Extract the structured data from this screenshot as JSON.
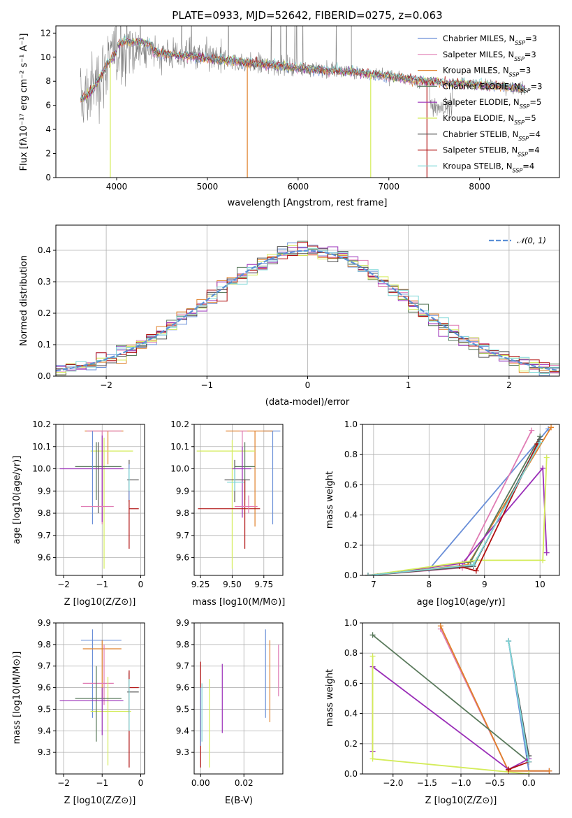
{
  "figure_title": "PLATE=0933, MJD=52642, FIBERID=0275, z=0.063",
  "colors": [
    "#6a8fd8",
    "#e07cb4",
    "#e0802a",
    "#5a7a5c",
    "#9a2fb8",
    "#d4ec5a",
    "#555555",
    "#b01010",
    "#7ed8d8"
  ],
  "chart_data": [
    {
      "id": "spectrum",
      "type": "line",
      "title": "PLATE=0933, MJD=52642, FIBERID=0275, z=0.063",
      "xlabel": "wavelength [Angstrom, rest frame]",
      "ylabel": "Flux [fλ10⁻¹⁷ erg cm⁻² s⁻¹ A⁻¹]",
      "xlim": [
        3330,
        8880
      ],
      "ylim": [
        0,
        12.6
      ],
      "xticks": [
        4000,
        5000,
        6000,
        7000,
        8000
      ],
      "yticks": [
        0,
        2,
        4,
        6,
        8,
        10,
        12
      ],
      "legend_position": "upper-right",
      "data_color": "#808080",
      "legend": [
        "Chabrier MILES, NSSP=3",
        "Salpeter MILES, NSSP=3",
        "Kroupa MILES, NSSP=3",
        "Chabrier ELODIE, NSSP=3",
        "Salpeter ELODIE, NSSP=5",
        "Kroupa ELODIE, NSSP=5",
        "Chabrier STELIB, NSSP=4",
        "Salpeter STELIB, NSSP=4",
        "Kroupa STELIB, NSSP=4"
      ],
      "legend_parts": [
        {
          "a": "Chabrier MILES, N",
          "b": "SSP",
          "c": "=3"
        },
        {
          "a": "Salpeter MILES, N",
          "b": "SSP",
          "c": "=3"
        },
        {
          "a": "Kroupa MILES, N",
          "b": "SSP",
          "c": "=3"
        },
        {
          "a": "Chabrier ELODIE, N",
          "b": "SSP",
          "c": "=3"
        },
        {
          "a": "Salpeter ELODIE, N",
          "b": "SSP",
          "c": "=5"
        },
        {
          "a": "Kroupa ELODIE, N",
          "b": "SSP",
          "c": "=5"
        },
        {
          "a": "Chabrier STELIB, N",
          "b": "SSP",
          "c": "=4"
        },
        {
          "a": "Salpeter STELIB, N",
          "b": "SSP",
          "c": "=4"
        },
        {
          "a": "Kroupa STELIB, N",
          "b": "SSP",
          "c": "=4"
        }
      ],
      "continuum": {
        "x": [
          3600,
          3700,
          3800,
          3900,
          4000,
          4100,
          4300,
          4500,
          4800,
          5000,
          5200,
          5500,
          5800,
          6000,
          6300,
          6600,
          6800,
          7000,
          7200,
          7400,
          7600,
          7800,
          8000,
          8200,
          8500
        ],
        "y": [
          6.4,
          7.0,
          8.1,
          9.5,
          10.4,
          10.7,
          10.6,
          10.3,
          10.1,
          9.9,
          9.7,
          9.5,
          9.3,
          9.1,
          8.9,
          8.8,
          8.6,
          8.4,
          8.2,
          8.0,
          7.9,
          7.8,
          7.7,
          7.6,
          7.4
        ]
      },
      "model_drops": [
        {
          "x": 3930,
          "y": 0
        },
        {
          "x": 5440,
          "y": 0
        },
        {
          "x": 6800,
          "y": 0
        },
        {
          "x": 7420,
          "y": 0
        }
      ]
    },
    {
      "id": "residual-hist",
      "type": "line",
      "xlabel": "(data-model)/error",
      "ylabel": "Normed distribution",
      "xlim": [
        -2.5,
        2.5
      ],
      "ylim": [
        0,
        0.48
      ],
      "xticks": [
        -2,
        -1,
        0,
        1,
        2
      ],
      "yticks": [
        0.0,
        0.1,
        0.2,
        0.3,
        0.4
      ],
      "legend": [
        "𝒩(0, 1)"
      ],
      "legend_position": "upper-right",
      "gaussian_color": "#5b8fd6",
      "bin_width": 0.1
    },
    {
      "id": "age-vs-Z",
      "type": "scatter",
      "xlabel": "Z [log10(Z/Z⊙)]",
      "ylabel": "age  [log10(age/yr)]",
      "xlim": [
        -2.2,
        0.1
      ],
      "ylim": [
        9.52,
        10.2
      ],
      "xticks": [
        -2,
        -1,
        0
      ],
      "yticks": [
        9.6,
        9.7,
        9.8,
        9.9,
        10.0,
        10.1,
        10.2
      ],
      "points": [
        {
          "x": -0.85,
          "y": 10.17,
          "xe": [
            -1.45,
            -0.45
          ],
          "ye": [
            10.02,
            10.17
          ],
          "c": 2
        },
        {
          "x": -1.0,
          "y": 10.17,
          "xe": [
            -1.4,
            -0.5
          ],
          "ye": [
            9.75,
            10.17
          ],
          "c": 1
        },
        {
          "x": -0.95,
          "y": 10.08,
          "xe": [
            -1.3,
            -0.2
          ],
          "ye": [
            9.55,
            10.14
          ],
          "c": 5
        },
        {
          "x": -1.15,
          "y": 10.01,
          "xe": [
            -1.7,
            -0.5
          ],
          "ye": [
            9.86,
            10.12
          ],
          "c": 3
        },
        {
          "x": -1.0,
          "y": 10.0,
          "xe": [
            -2.1,
            -0.45
          ],
          "ye": [
            9.76,
            10.15
          ],
          "c": 4
        },
        {
          "x": -1.25,
          "y": 10.0,
          "xe": [
            -1.25,
            -1.25
          ],
          "ye": [
            9.75,
            10.17
          ],
          "c": 0
        },
        {
          "x": -1.1,
          "y": 10.03,
          "xe": [
            -1.1,
            -1.1
          ],
          "ye": [
            9.8,
            10.12
          ],
          "c": 6
        },
        {
          "x": -1.15,
          "y": 9.83,
          "xe": [
            -1.55,
            -0.7
          ],
          "ye": [
            9.83,
            9.83
          ],
          "c": 1
        },
        {
          "x": -0.3,
          "y": 9.95,
          "xe": [
            -0.35,
            -0.05
          ],
          "ye": [
            9.85,
            10.04
          ],
          "c": 6
        },
        {
          "x": -0.3,
          "y": 9.82,
          "xe": [
            -0.3,
            -0.05
          ],
          "ye": [
            9.64,
            9.95
          ],
          "c": 7
        },
        {
          "x": -0.3,
          "y": 9.96,
          "xe": [
            -0.3,
            -0.3
          ],
          "ye": [
            9.86,
            10.02
          ],
          "c": 0
        },
        {
          "x": -0.3,
          "y": 9.95,
          "xe": [
            -0.3,
            -0.3
          ],
          "ye": [
            9.9,
            10.0
          ],
          "c": 8
        }
      ]
    },
    {
      "id": "age-vs-mass",
      "type": "scatter",
      "xlabel": "mass [log10(M/M⊙)]",
      "ylabel": "",
      "xlim": [
        9.2,
        9.9
      ],
      "ylim": [
        9.52,
        10.2
      ],
      "xticks": [
        9.25,
        9.5,
        9.75
      ],
      "yticks": [
        9.6,
        9.7,
        9.8,
        9.9,
        10.0,
        10.1,
        10.2
      ],
      "points": [
        {
          "x": 9.82,
          "y": 10.17,
          "xe": [
            9.75,
            9.88
          ],
          "ye": [
            9.75,
            10.17
          ],
          "c": 0
        },
        {
          "x": 9.68,
          "y": 10.17,
          "xe": [
            9.45,
            9.82
          ],
          "ye": [
            9.74,
            10.17
          ],
          "c": 2
        },
        {
          "x": 9.58,
          "y": 10.17,
          "xe": [
            9.56,
            9.62
          ],
          "ye": [
            9.8,
            10.17
          ],
          "c": 1
        },
        {
          "x": 9.5,
          "y": 10.08,
          "xe": [
            9.22,
            9.68
          ],
          "ye": [
            9.55,
            10.13
          ],
          "c": 5
        },
        {
          "x": 9.6,
          "y": 10.01,
          "xe": [
            9.52,
            9.68
          ],
          "ye": [
            9.86,
            10.12
          ],
          "c": 3
        },
        {
          "x": 9.58,
          "y": 10.0,
          "xe": [
            9.5,
            9.65
          ],
          "ye": [
            9.78,
            10.1
          ],
          "c": 4
        },
        {
          "x": 9.52,
          "y": 9.95,
          "xe": [
            9.44,
            9.64
          ],
          "ye": [
            9.85,
            10.04
          ],
          "c": 6
        },
        {
          "x": 9.52,
          "y": 9.94,
          "xe": [
            9.46,
            9.6
          ],
          "ye": [
            9.9,
            10.0
          ],
          "c": 8
        },
        {
          "x": 9.6,
          "y": 9.82,
          "xe": [
            9.23,
            9.72
          ],
          "ye": [
            9.64,
            9.95
          ],
          "c": 7
        },
        {
          "x": 9.63,
          "y": 9.83,
          "xe": [
            9.52,
            9.7
          ],
          "ye": [
            9.8,
            9.88
          ],
          "c": 1
        }
      ]
    },
    {
      "id": "mass-weight-vs-age",
      "type": "line",
      "xlabel": "age  [log10(age/yr)]",
      "ylabel": "mass weight",
      "xlim": [
        6.8,
        10.35
      ],
      "ylim": [
        0,
        1.0
      ],
      "xticks": [
        7,
        8,
        9,
        10
      ],
      "yticks": [
        0.0,
        0.2,
        0.4,
        0.6,
        0.8,
        1.0
      ],
      "series": [
        {
          "c": 0,
          "x": [
            6.9,
            8.0,
            10.15
          ],
          "y": [
            0.0,
            0.04,
            0.97
          ]
        },
        {
          "c": 1,
          "x": [
            6.9,
            8.6,
            9.85
          ],
          "y": [
            0.0,
            0.05,
            0.96
          ]
        },
        {
          "c": 2,
          "x": [
            6.9,
            8.7,
            10.2
          ],
          "y": [
            0.0,
            0.07,
            0.98
          ]
        },
        {
          "c": 3,
          "x": [
            6.9,
            8.75,
            10.0
          ],
          "y": [
            0.0,
            0.09,
            0.92
          ]
        },
        {
          "c": 4,
          "x": [
            6.9,
            8.6,
            10.05,
            10.12
          ],
          "y": [
            0.0,
            0.08,
            0.71,
            0.15
          ]
        },
        {
          "c": 5,
          "x": [
            6.9,
            8.85,
            10.05,
            10.12
          ],
          "y": [
            0.0,
            0.1,
            0.1,
            0.78
          ]
        },
        {
          "c": 6,
          "x": [
            6.9,
            8.8,
            10.0
          ],
          "y": [
            0.0,
            0.06,
            0.9
          ]
        },
        {
          "c": 7,
          "x": [
            6.9,
            8.55,
            8.85,
            9.95
          ],
          "y": [
            0.0,
            0.06,
            0.03,
            0.87
          ]
        },
        {
          "c": 8,
          "x": [
            6.9,
            8.8,
            10.0
          ],
          "y": [
            0.0,
            0.07,
            0.88
          ]
        }
      ]
    },
    {
      "id": "mass-vs-Z",
      "type": "scatter",
      "xlabel": "Z [log10(Z/Z⊙)]",
      "ylabel": "mass [log10(M/M⊙)]",
      "xlim": [
        -2.2,
        0.1
      ],
      "ylim": [
        9.2,
        9.9
      ],
      "xticks": [
        -2,
        -1,
        0
      ],
      "yticks": [
        9.3,
        9.4,
        9.5,
        9.6,
        9.7,
        9.8,
        9.9
      ],
      "points": [
        {
          "x": -1.25,
          "y": 9.82,
          "xe": [
            -1.55,
            -0.5
          ],
          "ye": [
            9.46,
            9.87
          ],
          "c": 0
        },
        {
          "x": -1.0,
          "y": 9.78,
          "xe": [
            -1.5,
            -0.5
          ],
          "ye": [
            9.55,
            9.82
          ],
          "c": 2
        },
        {
          "x": -0.95,
          "y": 9.62,
          "xe": [
            -1.5,
            -0.7
          ],
          "ye": [
            9.52,
            9.8
          ],
          "c": 1
        },
        {
          "x": -0.85,
          "y": 9.49,
          "xe": [
            -1.3,
            -0.25
          ],
          "ye": [
            9.24,
            9.65
          ],
          "c": 5
        },
        {
          "x": -1.15,
          "y": 9.55,
          "xe": [
            -1.7,
            -0.5
          ],
          "ye": [
            9.35,
            9.7
          ],
          "c": 3
        },
        {
          "x": -1.0,
          "y": 9.54,
          "xe": [
            -2.1,
            -0.45
          ],
          "ye": [
            9.38,
            9.6
          ],
          "c": 4
        },
        {
          "x": -0.3,
          "y": 9.58,
          "xe": [
            -0.35,
            -0.05
          ],
          "ye": [
            9.48,
            9.67
          ],
          "c": 6
        },
        {
          "x": -0.3,
          "y": 9.6,
          "xe": [
            -0.3,
            -0.05
          ],
          "ye": [
            9.23,
            9.68
          ],
          "c": 7
        },
        {
          "x": -0.3,
          "y": 9.56,
          "xe": [
            -0.3,
            -0.3
          ],
          "ye": [
            9.4,
            9.64
          ],
          "c": 8
        }
      ]
    },
    {
      "id": "mass-vs-EBV",
      "type": "scatter",
      "xlabel": "E(B-V)",
      "ylabel": "",
      "xlim": [
        -0.003,
        0.038
      ],
      "ylim": [
        9.2,
        9.9
      ],
      "xticks": [
        0.0,
        0.02
      ],
      "yticks": [
        9.3,
        9.4,
        9.5,
        9.6,
        9.7,
        9.8,
        9.9
      ],
      "segments": [
        {
          "x": 0.0,
          "y": [
            9.23,
            9.72
          ],
          "c": 7
        },
        {
          "x": 0.0,
          "y": [
            9.33,
            9.6
          ],
          "c": 0
        },
        {
          "x": 0.0006,
          "y": [
            9.35,
            9.62
          ],
          "c": 8
        },
        {
          "x": 0.004,
          "y": [
            9.23,
            9.64
          ],
          "c": 5
        },
        {
          "x": 0.01,
          "y": [
            9.39,
            9.71
          ],
          "c": 4
        },
        {
          "x": 0.03,
          "y": [
            9.46,
            9.87
          ],
          "c": 0
        },
        {
          "x": 0.032,
          "y": [
            9.44,
            9.82
          ],
          "c": 2
        },
        {
          "x": 0.036,
          "y": [
            9.56,
            9.8
          ],
          "c": 1
        }
      ]
    },
    {
      "id": "mass-weight-vs-Z",
      "type": "line",
      "xlabel": "Z [log10(Z/Z⊙)]",
      "ylabel": "mass weight",
      "xlim": [
        -2.45,
        0.45
      ],
      "ylim": [
        0,
        1.0
      ],
      "xticks": [
        -2.0,
        -1.5,
        -1.0,
        -0.5,
        0.0
      ],
      "yticks": [
        0.0,
        0.2,
        0.4,
        0.6,
        0.8,
        1.0
      ],
      "series": [
        {
          "c": 0,
          "x": [
            -0.3,
            0.0,
            0.3
          ],
          "y": [
            0.88,
            0.02,
            0.02
          ]
        },
        {
          "c": 1,
          "x": [
            -1.3,
            -0.3,
            0.3
          ],
          "y": [
            0.96,
            0.02,
            0.02
          ]
        },
        {
          "c": 2,
          "x": [
            -1.3,
            -0.3,
            0.3
          ],
          "y": [
            0.98,
            0.02,
            0.02
          ]
        },
        {
          "c": 3,
          "x": [
            -2.3,
            0.0
          ],
          "y": [
            0.92,
            0.08
          ]
        },
        {
          "c": 4,
          "x": [
            -2.3,
            -2.3,
            -0.3,
            0.0
          ],
          "y": [
            0.15,
            0.71,
            0.03,
            0.1
          ]
        },
        {
          "c": 5,
          "x": [
            -2.3,
            -2.3,
            0.0
          ],
          "y": [
            0.78,
            0.1,
            0.0
          ]
        },
        {
          "c": 6,
          "x": [
            -0.3,
            0.0
          ],
          "y": [
            0.88,
            0.12
          ]
        },
        {
          "c": 7,
          "x": [
            -0.3,
            0.0
          ],
          "y": [
            0.03,
            0.08
          ]
        },
        {
          "c": 8,
          "x": [
            -0.3,
            0.0
          ],
          "y": [
            0.88,
            0.08
          ]
        }
      ]
    }
  ]
}
